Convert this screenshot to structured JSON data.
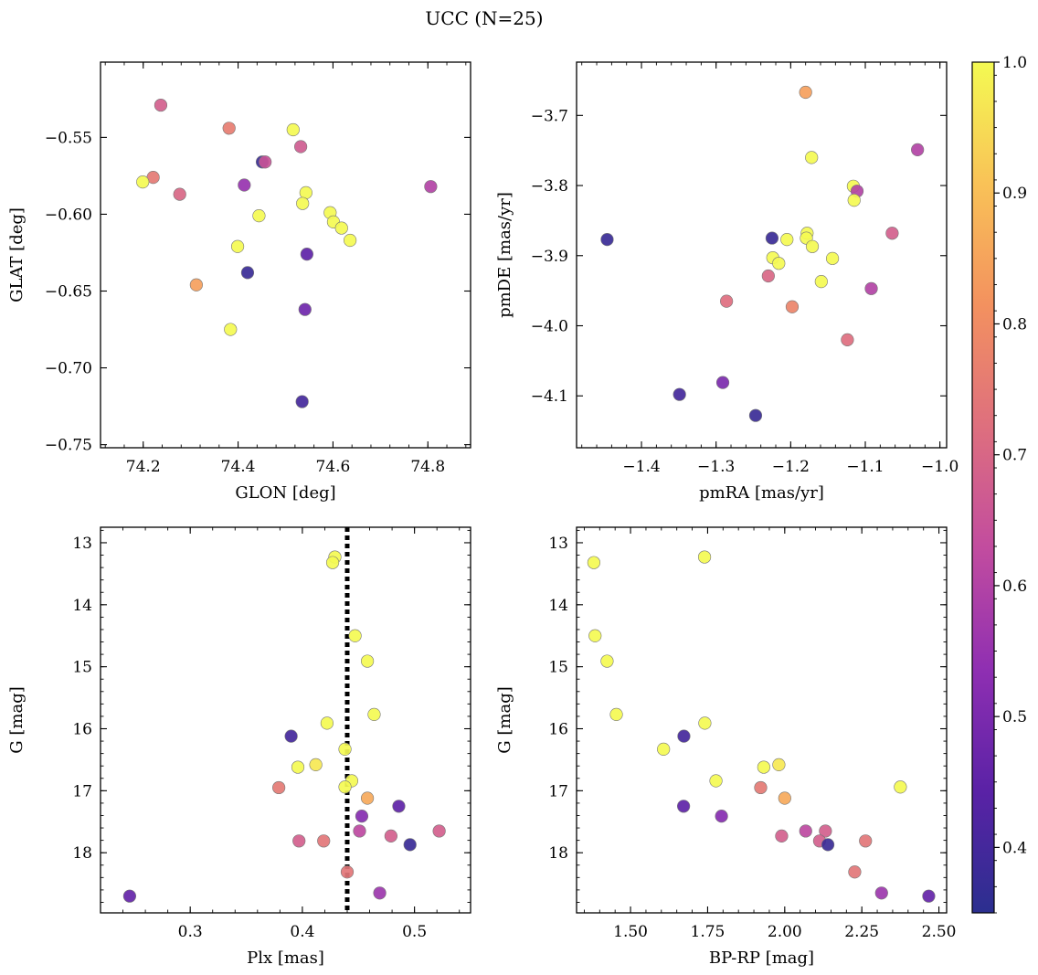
{
  "title": "UCC (N=25)",
  "colorbar": {
    "ticks": [
      "0.4",
      "0.5",
      "0.6",
      "0.7",
      "0.8",
      "0.9",
      "1.0"
    ],
    "range": [
      0.35,
      1.0
    ],
    "colormap": "plasma",
    "stops": [
      "#2b2f8f",
      "#5a22a6",
      "#8f2fb2",
      "#c24c9f",
      "#de6f7e",
      "#f3915f",
      "#f9c257",
      "#f4fa52"
    ]
  },
  "chart_data": [
    {
      "type": "scatter",
      "id": "panel-glon-glat",
      "xlabel": "GLON [deg]",
      "ylabel": "GLAT [deg]",
      "xlim": [
        74.11,
        74.89
      ],
      "ylim": [
        -0.752,
        -0.501
      ],
      "y_inverted": false,
      "xticks": [
        "74.2",
        "74.4",
        "74.6",
        "74.8"
      ],
      "xtick_values": [
        74.2,
        74.4,
        74.6,
        74.8
      ],
      "yticks": [
        "−0.55",
        "−0.60",
        "−0.65",
        "−0.70",
        "−0.75"
      ],
      "ytick_values": [
        -0.55,
        -0.6,
        -0.65,
        -0.7,
        -0.75
      ],
      "points": [
        {
          "x": 74.237,
          "y": -0.529,
          "c": 0.68
        },
        {
          "x": 74.381,
          "y": -0.544,
          "c": 0.76
        },
        {
          "x": 74.516,
          "y": -0.545,
          "c": 1.0
        },
        {
          "x": 74.532,
          "y": -0.556,
          "c": 0.67
        },
        {
          "x": 74.451,
          "y": -0.566,
          "c": 0.38
        },
        {
          "x": 74.457,
          "y": -0.566,
          "c": 0.65
        },
        {
          "x": 74.221,
          "y": -0.576,
          "c": 0.75
        },
        {
          "x": 74.199,
          "y": -0.579,
          "c": 1.0
        },
        {
          "x": 74.413,
          "y": -0.581,
          "c": 0.55
        },
        {
          "x": 74.806,
          "y": -0.582,
          "c": 0.6
        },
        {
          "x": 74.277,
          "y": -0.587,
          "c": 0.7
        },
        {
          "x": 74.543,
          "y": -0.586,
          "c": 1.0
        },
        {
          "x": 74.536,
          "y": -0.593,
          "c": 1.0
        },
        {
          "x": 74.594,
          "y": -0.599,
          "c": 1.0
        },
        {
          "x": 74.444,
          "y": -0.601,
          "c": 1.0
        },
        {
          "x": 74.601,
          "y": -0.605,
          "c": 1.0
        },
        {
          "x": 74.618,
          "y": -0.609,
          "c": 1.0
        },
        {
          "x": 74.636,
          "y": -0.617,
          "c": 1.0
        },
        {
          "x": 74.399,
          "y": -0.621,
          "c": 1.0
        },
        {
          "x": 74.545,
          "y": -0.626,
          "c": 0.45
        },
        {
          "x": 74.42,
          "y": -0.638,
          "c": 0.38
        },
        {
          "x": 74.312,
          "y": -0.646,
          "c": 0.84
        },
        {
          "x": 74.541,
          "y": -0.662,
          "c": 0.48
        },
        {
          "x": 74.384,
          "y": -0.675,
          "c": 1.0
        },
        {
          "x": 74.535,
          "y": -0.722,
          "c": 0.4
        }
      ]
    },
    {
      "type": "scatter",
      "id": "panel-pm",
      "xlabel": "pmRA [mas/yr]",
      "ylabel": "pmDE [mas/yr]",
      "xlim": [
        -1.487,
        -0.991
      ],
      "ylim": [
        -4.174,
        -3.624
      ],
      "y_inverted": false,
      "xticks": [
        "−1.4",
        "−1.3",
        "−1.2",
        "−1.1",
        "−1.0"
      ],
      "xtick_values": [
        -1.4,
        -1.3,
        -1.2,
        -1.1,
        -1.0
      ],
      "yticks": [
        "−3.7",
        "−3.8",
        "−3.9",
        "−4.0",
        "−4.1"
      ],
      "ytick_values": [
        -3.7,
        -3.8,
        -3.9,
        -4.0,
        -4.1
      ],
      "points": [
        {
          "x": -1.18,
          "y": -3.667,
          "c": 0.84
        },
        {
          "x": -1.03,
          "y": -3.749,
          "c": 0.6
        },
        {
          "x": -1.172,
          "y": -3.76,
          "c": 1.0
        },
        {
          "x": -1.116,
          "y": -3.801,
          "c": 1.0
        },
        {
          "x": -1.111,
          "y": -3.808,
          "c": 0.6
        },
        {
          "x": -1.115,
          "y": -3.821,
          "c": 1.0
        },
        {
          "x": -1.446,
          "y": -3.877,
          "c": 0.38
        },
        {
          "x": -1.225,
          "y": -3.875,
          "c": 0.38
        },
        {
          "x": -1.178,
          "y": -3.868,
          "c": 1.0
        },
        {
          "x": -1.179,
          "y": -3.875,
          "c": 1.0
        },
        {
          "x": -1.205,
          "y": -3.877,
          "c": 1.0
        },
        {
          "x": -1.064,
          "y": -3.868,
          "c": 0.68
        },
        {
          "x": -1.171,
          "y": -3.887,
          "c": 1.0
        },
        {
          "x": -1.224,
          "y": -3.903,
          "c": 1.0
        },
        {
          "x": -1.216,
          "y": -3.911,
          "c": 1.0
        },
        {
          "x": -1.144,
          "y": -3.904,
          "c": 1.0
        },
        {
          "x": -1.23,
          "y": -3.929,
          "c": 0.7
        },
        {
          "x": -1.159,
          "y": -3.937,
          "c": 1.0
        },
        {
          "x": -1.092,
          "y": -3.947,
          "c": 0.6
        },
        {
          "x": -1.286,
          "y": -3.965,
          "c": 0.72
        },
        {
          "x": -1.198,
          "y": -3.973,
          "c": 0.78
        },
        {
          "x": -1.124,
          "y": -4.02,
          "c": 0.72
        },
        {
          "x": -1.291,
          "y": -4.081,
          "c": 0.5
        },
        {
          "x": -1.349,
          "y": -4.098,
          "c": 0.4
        },
        {
          "x": -1.247,
          "y": -4.128,
          "c": 0.38
        }
      ]
    },
    {
      "type": "scatter",
      "id": "panel-plx-g",
      "xlabel": "Plx [mas]",
      "ylabel": "G [mag]",
      "xlim": [
        0.22,
        0.55
      ],
      "ylim": [
        12.75,
        18.97
      ],
      "y_inverted": true,
      "xticks": [
        "0.3",
        "0.4",
        "0.5"
      ],
      "xtick_values": [
        0.3,
        0.4,
        0.5
      ],
      "yticks": [
        "13",
        "14",
        "15",
        "16",
        "17",
        "18"
      ],
      "ytick_values": [
        13,
        14,
        15,
        16,
        17,
        18
      ],
      "vline": 0.44,
      "points": [
        {
          "x": 0.429,
          "y": 13.23,
          "c": 1.0
        },
        {
          "x": 0.427,
          "y": 13.32,
          "c": 1.0
        },
        {
          "x": 0.447,
          "y": 14.5,
          "c": 1.0
        },
        {
          "x": 0.458,
          "y": 14.91,
          "c": 1.0
        },
        {
          "x": 0.464,
          "y": 15.77,
          "c": 1.0
        },
        {
          "x": 0.422,
          "y": 15.91,
          "c": 1.0
        },
        {
          "x": 0.39,
          "y": 16.12,
          "c": 0.4
        },
        {
          "x": 0.438,
          "y": 16.33,
          "c": 1.0
        },
        {
          "x": 0.412,
          "y": 16.58,
          "c": 0.97
        },
        {
          "x": 0.396,
          "y": 16.62,
          "c": 1.0
        },
        {
          "x": 0.444,
          "y": 16.84,
          "c": 1.0
        },
        {
          "x": 0.438,
          "y": 16.94,
          "c": 1.0
        },
        {
          "x": 0.379,
          "y": 16.95,
          "c": 0.75
        },
        {
          "x": 0.458,
          "y": 17.12,
          "c": 0.86
        },
        {
          "x": 0.486,
          "y": 17.25,
          "c": 0.45
        },
        {
          "x": 0.453,
          "y": 17.41,
          "c": 0.52
        },
        {
          "x": 0.451,
          "y": 17.65,
          "c": 0.62
        },
        {
          "x": 0.522,
          "y": 17.65,
          "c": 0.68
        },
        {
          "x": 0.479,
          "y": 17.73,
          "c": 0.68
        },
        {
          "x": 0.397,
          "y": 17.81,
          "c": 0.68
        },
        {
          "x": 0.419,
          "y": 17.81,
          "c": 0.74
        },
        {
          "x": 0.496,
          "y": 17.87,
          "c": 0.38
        },
        {
          "x": 0.44,
          "y": 18.31,
          "c": 0.74
        },
        {
          "x": 0.469,
          "y": 18.65,
          "c": 0.56
        },
        {
          "x": 0.246,
          "y": 18.7,
          "c": 0.46
        }
      ]
    },
    {
      "type": "scatter",
      "id": "panel-cmd",
      "xlabel": "BP-RP [mag]",
      "ylabel": "G [mag]",
      "xlim": [
        1.325,
        2.525
      ],
      "ylim": [
        12.75,
        18.97
      ],
      "y_inverted": true,
      "xticks": [
        "1.50",
        "1.75",
        "2.00",
        "2.25",
        "2.50"
      ],
      "xtick_values": [
        1.5,
        1.75,
        2.0,
        2.25,
        2.5
      ],
      "yticks": [
        "13",
        "14",
        "15",
        "16",
        "17",
        "18"
      ],
      "ytick_values": [
        13,
        14,
        15,
        16,
        17,
        18
      ],
      "points": [
        {
          "x": 1.74,
          "y": 13.23,
          "c": 1.0
        },
        {
          "x": 1.381,
          "y": 13.32,
          "c": 1.0
        },
        {
          "x": 1.385,
          "y": 14.5,
          "c": 1.0
        },
        {
          "x": 1.424,
          "y": 14.91,
          "c": 1.0
        },
        {
          "x": 1.454,
          "y": 15.77,
          "c": 1.0
        },
        {
          "x": 1.741,
          "y": 15.91,
          "c": 1.0
        },
        {
          "x": 1.673,
          "y": 16.12,
          "c": 0.4
        },
        {
          "x": 1.607,
          "y": 16.33,
          "c": 1.0
        },
        {
          "x": 1.981,
          "y": 16.58,
          "c": 0.97
        },
        {
          "x": 1.932,
          "y": 16.62,
          "c": 1.0
        },
        {
          "x": 1.777,
          "y": 16.84,
          "c": 1.0
        },
        {
          "x": 2.375,
          "y": 16.94,
          "c": 1.0
        },
        {
          "x": 1.922,
          "y": 16.95,
          "c": 0.75
        },
        {
          "x": 2.0,
          "y": 17.12,
          "c": 0.86
        },
        {
          "x": 1.672,
          "y": 17.25,
          "c": 0.45
        },
        {
          "x": 1.795,
          "y": 17.41,
          "c": 0.52
        },
        {
          "x": 2.068,
          "y": 17.65,
          "c": 0.62
        },
        {
          "x": 2.132,
          "y": 17.65,
          "c": 0.68
        },
        {
          "x": 1.99,
          "y": 17.73,
          "c": 0.68
        },
        {
          "x": 2.113,
          "y": 17.81,
          "c": 0.68
        },
        {
          "x": 2.262,
          "y": 17.81,
          "c": 0.74
        },
        {
          "x": 2.14,
          "y": 17.87,
          "c": 0.38
        },
        {
          "x": 2.227,
          "y": 18.31,
          "c": 0.74
        },
        {
          "x": 2.314,
          "y": 18.65,
          "c": 0.56
        },
        {
          "x": 2.467,
          "y": 18.7,
          "c": 0.46
        }
      ]
    }
  ]
}
